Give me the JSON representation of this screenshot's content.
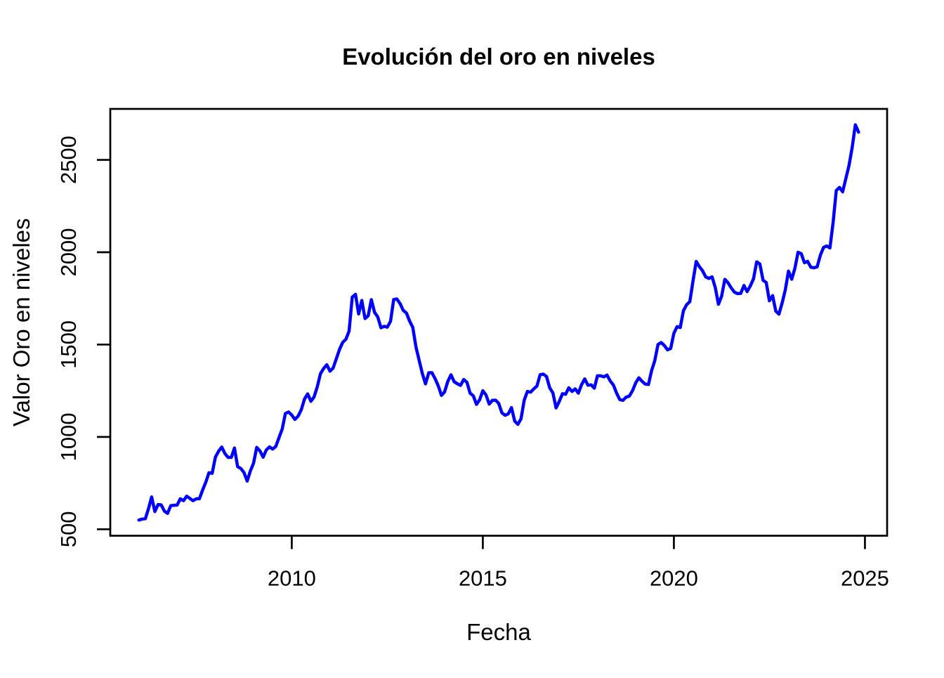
{
  "page": {
    "background": "#ffffff"
  },
  "chart_data": {
    "type": "line",
    "title": "Evolución del oro en niveles",
    "xlabel": "Fecha",
    "ylabel": "Valor Oro en niveles",
    "x_ticks": [
      2010,
      2015,
      2020,
      2025
    ],
    "y_ticks": [
      500,
      1000,
      1500,
      2000,
      2500
    ],
    "xlim": [
      2005.25,
      2025.58
    ],
    "ylim": [
      465,
      2776
    ],
    "grid": false,
    "legend": false,
    "box": true,
    "line_color": "#0000FF",
    "axis_color": "#000000",
    "text_color": "#000000",
    "series": [
      {
        "start_year": 2006,
        "start_month": 1,
        "frequency": "monthly",
        "values": [
          550,
          555,
          557,
          611,
          675,
          596,
          634,
          632,
          598,
          586,
          628,
          630,
          631,
          665,
          655,
          679,
          667,
          655,
          665,
          665,
          713,
          755,
          806,
          803,
          890,
          922,
          945,
          910,
          889,
          889,
          940,
          839,
          829,
          807,
          761,
          816,
          858,
          943,
          924,
          890,
          929,
          946,
          934,
          949,
          997,
          1043,
          1127,
          1135,
          1118,
          1095,
          1113,
          1148,
          1205,
          1233,
          1193,
          1216,
          1271,
          1342,
          1370,
          1391,
          1356,
          1373,
          1424,
          1474,
          1512,
          1529,
          1573,
          1757,
          1772,
          1666,
          1739,
          1641,
          1656,
          1743,
          1674,
          1650,
          1591,
          1599,
          1594,
          1626,
          1744,
          1747,
          1722,
          1685,
          1671,
          1627,
          1593,
          1487,
          1414,
          1343,
          1287,
          1347,
          1348,
          1316,
          1276,
          1225,
          1244,
          1301,
          1336,
          1299,
          1288,
          1279,
          1311,
          1296,
          1237,
          1223,
          1176,
          1201,
          1250,
          1227,
          1178,
          1198,
          1199,
          1181,
          1130,
          1117,
          1125,
          1159,
          1086,
          1068,
          1098,
          1200,
          1246,
          1242,
          1260,
          1276,
          1337,
          1340,
          1327,
          1266,
          1238,
          1157,
          1192,
          1234,
          1231,
          1266,
          1246,
          1260,
          1237,
          1283,
          1314,
          1280,
          1282,
          1264,
          1331,
          1331,
          1325,
          1335,
          1303,
          1281,
          1238,
          1202,
          1198,
          1215,
          1221,
          1250,
          1292,
          1320,
          1301,
          1286,
          1284,
          1359,
          1413,
          1500,
          1511,
          1495,
          1471,
          1479,
          1561,
          1597,
          1592,
          1683,
          1716,
          1732,
          1843,
          1950,
          1922,
          1900,
          1866,
          1858,
          1867,
          1808,
          1718,
          1762,
          1853,
          1835,
          1807,
          1784,
          1776,
          1777,
          1820,
          1787,
          1817,
          1856,
          1948,
          1937,
          1848,
          1836,
          1737,
          1765,
          1681,
          1665,
          1726,
          1797,
          1898,
          1854,
          1913,
          2000,
          1992,
          1943,
          1951,
          1919,
          1916,
          1921,
          1984,
          2026,
          2034,
          2023,
          2160,
          2334,
          2351,
          2327,
          2398,
          2470,
          2568,
          2690,
          2650
        ]
      }
    ]
  }
}
